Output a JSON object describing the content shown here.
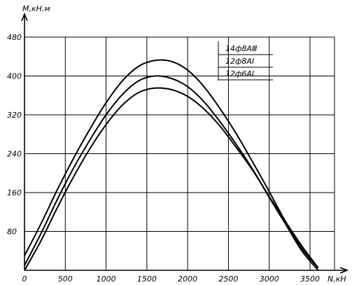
{
  "chart_data": {
    "type": "line",
    "xlabel": "N,кН",
    "ylabel": "М,кН.м",
    "xlim": [
      0,
      3800
    ],
    "ylim": [
      0,
      480
    ],
    "xticks": [
      0,
      500,
      1000,
      1500,
      2000,
      2500,
      3000,
      3500
    ],
    "yticks": [
      80,
      160,
      240,
      320,
      400,
      480
    ],
    "xtick_labels": [
      "0",
      "500",
      "1000",
      "1500",
      "2000",
      "2500",
      "3000",
      "3500"
    ],
    "ytick_labels": [
      "80",
      "160",
      "240",
      "320",
      "400",
      "480"
    ],
    "grid": true,
    "legend_position": "top-right",
    "series": [
      {
        "name": "14ф8АⅢ",
        "x": [
          0,
          200,
          400,
          600,
          800,
          1000,
          1200,
          1400,
          1600,
          1800,
          2000,
          2200,
          2400,
          2600,
          2800,
          3000,
          3200,
          3400,
          3600
        ],
        "y": [
          30,
          95,
          165,
          230,
          290,
          345,
          390,
          420,
          432,
          430,
          412,
          378,
          332,
          280,
          222,
          162,
          100,
          45,
          5
        ]
      },
      {
        "name": "12ф8АⅠ",
        "x": [
          0,
          200,
          400,
          600,
          800,
          1000,
          1200,
          1400,
          1600,
          1800,
          2000,
          2200,
          2400,
          2600,
          2800,
          3000,
          3200,
          3400,
          3600
        ],
        "y": [
          10,
          75,
          145,
          210,
          268,
          320,
          362,
          390,
          400,
          395,
          378,
          347,
          305,
          258,
          207,
          150,
          95,
          40,
          0
        ]
      },
      {
        "name": "12ф6АⅠ",
        "x": [
          0,
          200,
          400,
          600,
          800,
          1000,
          1200,
          1400,
          1600,
          1800,
          2000,
          2200,
          2400,
          2600,
          2800,
          3000,
          3200,
          3400,
          3600
        ],
        "y": [
          0,
          60,
          128,
          192,
          250,
          300,
          340,
          366,
          375,
          372,
          358,
          332,
          296,
          252,
          205,
          152,
          100,
          50,
          5
        ]
      }
    ]
  }
}
